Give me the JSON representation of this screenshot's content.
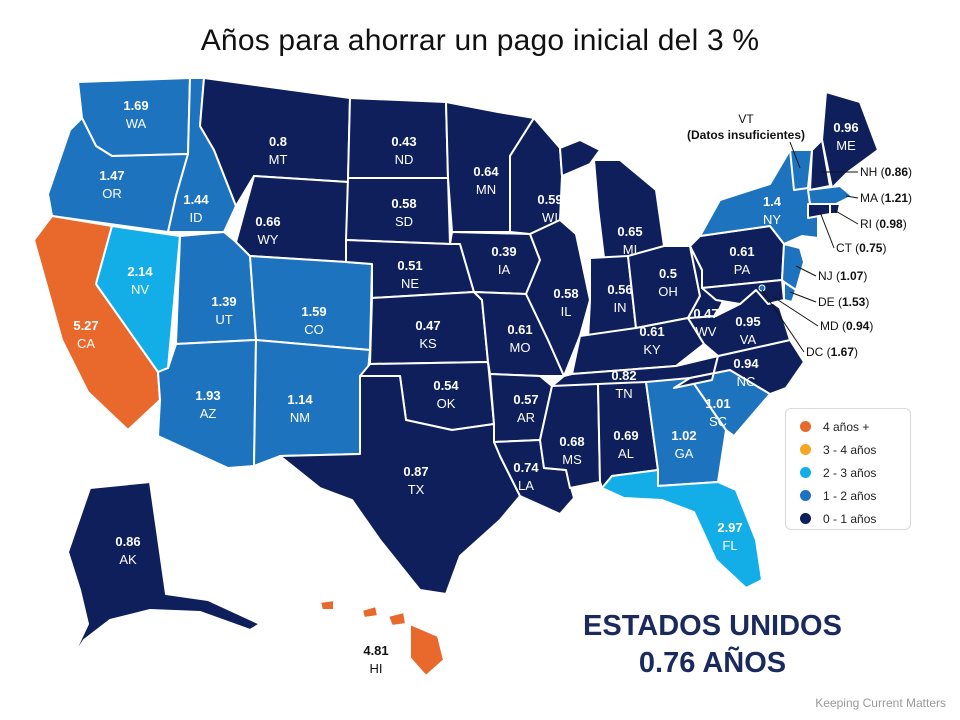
{
  "title": "Años para ahorrar un pago inicial del 3 %",
  "summary": {
    "line1": "ESTADOS UNIDOS",
    "line2": "0.76 AÑOS"
  },
  "credit": "Keeping Current Matters",
  "colors": {
    "c4plus": "#e9692c",
    "c3to4": "#f5a623",
    "c2to3": "#13aee8",
    "c1to2": "#1e73be",
    "c0to1": "#0e1f5b"
  },
  "legend": [
    {
      "label": "4 años +",
      "color_key": "c4plus"
    },
    {
      "label": "3 - 4 años",
      "color_key": "c3to4"
    },
    {
      "label": "2 - 3 años",
      "color_key": "c2to3"
    },
    {
      "label": "1 - 2 años",
      "color_key": "c1to2"
    },
    {
      "label": "0 - 1 años",
      "color_key": "c0to1"
    }
  ],
  "states": [
    {
      "abbr": "WA",
      "value": "1.69",
      "bin": "c1to2"
    },
    {
      "abbr": "OR",
      "value": "1.47",
      "bin": "c1to2"
    },
    {
      "abbr": "ID",
      "value": "1.44",
      "bin": "c1to2"
    },
    {
      "abbr": "CA",
      "value": "5.27",
      "bin": "c4plus"
    },
    {
      "abbr": "NV",
      "value": "2.14",
      "bin": "c2to3"
    },
    {
      "abbr": "UT",
      "value": "1.39",
      "bin": "c1to2"
    },
    {
      "abbr": "AZ",
      "value": "1.93",
      "bin": "c1to2"
    },
    {
      "abbr": "MT",
      "value": "0.8",
      "bin": "c0to1"
    },
    {
      "abbr": "WY",
      "value": "0.66",
      "bin": "c0to1"
    },
    {
      "abbr": "CO",
      "value": "1.59",
      "bin": "c1to2"
    },
    {
      "abbr": "NM",
      "value": "1.14",
      "bin": "c1to2"
    },
    {
      "abbr": "ND",
      "value": "0.43",
      "bin": "c0to1"
    },
    {
      "abbr": "SD",
      "value": "0.58",
      "bin": "c0to1"
    },
    {
      "abbr": "NE",
      "value": "0.51",
      "bin": "c0to1"
    },
    {
      "abbr": "KS",
      "value": "0.47",
      "bin": "c0to1"
    },
    {
      "abbr": "OK",
      "value": "0.54",
      "bin": "c0to1"
    },
    {
      "abbr": "TX",
      "value": "0.87",
      "bin": "c0to1"
    },
    {
      "abbr": "MN",
      "value": "0.64",
      "bin": "c0to1"
    },
    {
      "abbr": "IA",
      "value": "0.39",
      "bin": "c0to1"
    },
    {
      "abbr": "MO",
      "value": "0.61",
      "bin": "c0to1"
    },
    {
      "abbr": "AR",
      "value": "0.57",
      "bin": "c0to1"
    },
    {
      "abbr": "LA",
      "value": "0.74",
      "bin": "c0to1"
    },
    {
      "abbr": "WI",
      "value": "0.59",
      "bin": "c0to1"
    },
    {
      "abbr": "IL",
      "value": "0.58",
      "bin": "c0to1"
    },
    {
      "abbr": "MI",
      "value": "0.65",
      "bin": "c0to1"
    },
    {
      "abbr": "IN",
      "value": "0.56",
      "bin": "c0to1"
    },
    {
      "abbr": "OH",
      "value": "0.5",
      "bin": "c0to1"
    },
    {
      "abbr": "KY",
      "value": "0.61",
      "bin": "c0to1"
    },
    {
      "abbr": "TN",
      "value": "0.82",
      "bin": "c0to1"
    },
    {
      "abbr": "MS",
      "value": "0.68",
      "bin": "c0to1"
    },
    {
      "abbr": "AL",
      "value": "0.69",
      "bin": "c0to1"
    },
    {
      "abbr": "GA",
      "value": "1.02",
      "bin": "c1to2"
    },
    {
      "abbr": "FL",
      "value": "2.97",
      "bin": "c2to3"
    },
    {
      "abbr": "SC",
      "value": "1.01",
      "bin": "c1to2"
    },
    {
      "abbr": "NC",
      "value": "0.94",
      "bin": "c0to1"
    },
    {
      "abbr": "VA",
      "value": "0.95",
      "bin": "c0to1"
    },
    {
      "abbr": "WV",
      "value": "0.47",
      "bin": "c0to1"
    },
    {
      "abbr": "PA",
      "value": "0.61",
      "bin": "c0to1"
    },
    {
      "abbr": "NY",
      "value": "1.4",
      "bin": "c1to2"
    },
    {
      "abbr": "ME",
      "value": "0.96",
      "bin": "c0to1"
    },
    {
      "abbr": "AK",
      "value": "0.86",
      "bin": "c0to1"
    },
    {
      "abbr": "HI",
      "value": "4.81",
      "bin": "c4plus"
    }
  ],
  "small_states": [
    {
      "abbr": "NH",
      "value": "0.86",
      "bin": "c0to1"
    },
    {
      "abbr": "MA",
      "value": "1.21",
      "bin": "c1to2"
    },
    {
      "abbr": "RI",
      "value": "0.98",
      "bin": "c0to1"
    },
    {
      "abbr": "CT",
      "value": "0.75",
      "bin": "c0to1"
    },
    {
      "abbr": "NJ",
      "value": "1.07",
      "bin": "c1to2"
    },
    {
      "abbr": "DE",
      "value": "1.53",
      "bin": "c1to2"
    },
    {
      "abbr": "MD",
      "value": "0.94",
      "bin": "c0to1"
    },
    {
      "abbr": "DC",
      "value": "1.67",
      "bin": "c1to2"
    }
  ],
  "vt_note": {
    "abbr": "VT",
    "note": "(Datos insuficientes)",
    "bin": "c1to2"
  }
}
